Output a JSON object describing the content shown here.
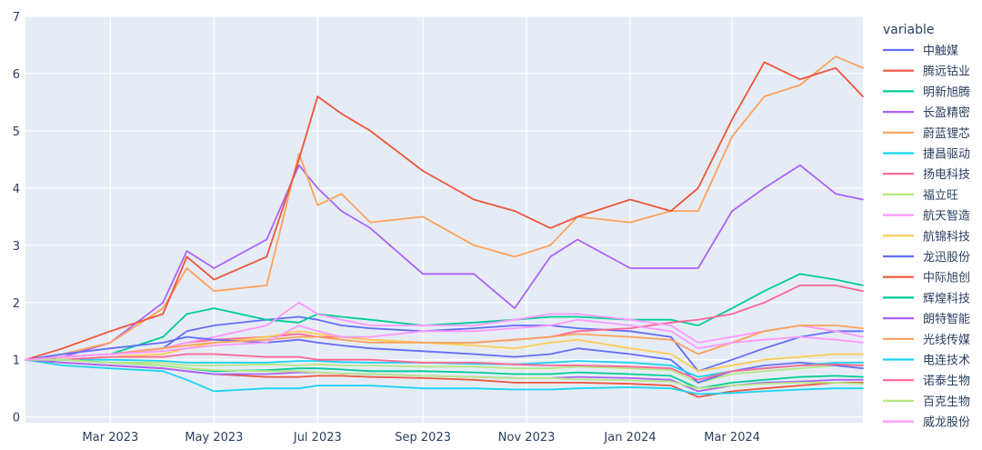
{
  "chart_data": {
    "type": "line",
    "title": "",
    "xlabel": "",
    "ylabel": "",
    "x_range": [
      "2023-01-10",
      "2024-05-17"
    ],
    "ylim": [
      -0.1,
      7.0
    ],
    "y_ticks": [
      0,
      1,
      2,
      3,
      4,
      5,
      6,
      7
    ],
    "x_ticks": [
      {
        "date": "2023-03-01",
        "label": "Mar 2023"
      },
      {
        "date": "2023-05-01",
        "label": "May 2023"
      },
      {
        "date": "2023-07-01",
        "label": "Jul 2023"
      },
      {
        "date": "2023-09-01",
        "label": "Sep 2023"
      },
      {
        "date": "2023-11-01",
        "label": "Nov 2023"
      },
      {
        "date": "2024-01-01",
        "label": "Jan 2024"
      },
      {
        "date": "2024-03-01",
        "label": "Mar 2024"
      }
    ],
    "grid": true,
    "legend_title": "variable",
    "legend_position": "right",
    "dates": [
      "2023-01-10",
      "2023-02-01",
      "2023-03-01",
      "2023-04-01",
      "2023-04-15",
      "2023-05-01",
      "2023-06-01",
      "2023-06-20",
      "2023-07-01",
      "2023-07-15",
      "2023-08-01",
      "2023-09-01",
      "2023-10-01",
      "2023-10-25",
      "2023-11-15",
      "2023-12-01",
      "2024-01-01",
      "2024-01-25",
      "2024-02-10",
      "2024-03-01",
      "2024-03-20",
      "2024-04-10",
      "2024-05-01",
      "2024-05-17"
    ],
    "series": [
      {
        "name": "中触媒",
        "color": "#636efa",
        "values": [
          1.0,
          1.05,
          1.1,
          1.2,
          1.5,
          1.6,
          1.7,
          1.75,
          1.7,
          1.6,
          1.55,
          1.5,
          1.55,
          1.6,
          1.6,
          1.55,
          1.5,
          1.4,
          0.8,
          1.0,
          1.2,
          1.4,
          1.5,
          1.5
        ]
      },
      {
        "name": "腾远钴业",
        "color": "#EF553B",
        "values": [
          1.0,
          0.95,
          0.9,
          0.85,
          0.8,
          0.75,
          0.7,
          0.7,
          0.72,
          0.72,
          0.7,
          0.68,
          0.65,
          0.6,
          0.6,
          0.6,
          0.58,
          0.55,
          0.35,
          0.45,
          0.5,
          0.55,
          0.6,
          0.6
        ]
      },
      {
        "name": "明新旭腾",
        "color": "#00cc96",
        "values": [
          1.0,
          1.05,
          1.1,
          1.4,
          1.8,
          1.9,
          1.7,
          1.65,
          1.8,
          1.75,
          1.7,
          1.6,
          1.65,
          1.7,
          1.75,
          1.75,
          1.7,
          1.7,
          1.6,
          1.9,
          2.2,
          2.5,
          2.4,
          2.3
        ]
      },
      {
        "name": "长盈精密",
        "color": "#ab63fa",
        "values": [
          1.0,
          1.05,
          1.3,
          2.0,
          2.9,
          2.6,
          3.1,
          4.4,
          4.0,
          3.6,
          3.3,
          2.5,
          2.5,
          1.9,
          2.8,
          3.1,
          2.6,
          2.6,
          2.6,
          3.6,
          4.0,
          4.4,
          3.9,
          3.8
        ]
      },
      {
        "name": "蔚蓝锂芯",
        "color": "#FFA15A",
        "values": [
          1.0,
          1.1,
          1.3,
          1.9,
          2.6,
          2.2,
          2.3,
          4.6,
          3.7,
          3.9,
          3.4,
          3.5,
          3.0,
          2.8,
          3.0,
          3.5,
          3.4,
          3.6,
          3.6,
          4.9,
          5.6,
          5.8,
          6.3,
          6.1
        ]
      },
      {
        "name": "捷昌驱动",
        "color": "#19d3f3",
        "values": [
          1.0,
          0.9,
          0.85,
          0.8,
          0.65,
          0.45,
          0.5,
          0.5,
          0.55,
          0.55,
          0.55,
          0.5,
          0.5,
          0.48,
          0.48,
          0.5,
          0.52,
          0.5,
          0.4,
          0.42,
          0.45,
          0.48,
          0.5,
          0.5
        ]
      },
      {
        "name": "扬电科技",
        "color": "#FF6692",
        "values": [
          1.0,
          1.05,
          1.1,
          1.2,
          1.3,
          1.35,
          1.4,
          1.45,
          1.4,
          1.4,
          1.35,
          1.3,
          1.3,
          1.35,
          1.4,
          1.5,
          1.55,
          1.65,
          1.7,
          1.8,
          2.0,
          2.3,
          2.3,
          2.2
        ]
      },
      {
        "name": "福立旺",
        "color": "#B6E880",
        "values": [
          1.0,
          1.0,
          0.95,
          0.95,
          0.9,
          0.9,
          0.92,
          0.9,
          0.92,
          0.9,
          0.9,
          0.88,
          0.88,
          0.85,
          0.85,
          0.88,
          0.85,
          0.82,
          0.6,
          0.75,
          0.8,
          0.85,
          0.9,
          0.9
        ]
      },
      {
        "name": "航天智造",
        "color": "#FF97FF",
        "values": [
          1.0,
          1.05,
          1.1,
          1.2,
          1.3,
          1.4,
          1.6,
          2.0,
          1.8,
          1.7,
          1.6,
          1.6,
          1.6,
          1.7,
          1.8,
          1.8,
          1.7,
          1.6,
          1.3,
          1.4,
          1.5,
          1.6,
          1.5,
          1.4
        ]
      },
      {
        "name": "航锦科技",
        "color": "#FECB52",
        "values": [
          1.0,
          1.0,
          1.05,
          1.1,
          1.2,
          1.3,
          1.4,
          1.5,
          1.45,
          1.4,
          1.35,
          1.3,
          1.25,
          1.2,
          1.3,
          1.35,
          1.2,
          1.1,
          0.8,
          0.9,
          1.0,
          1.05,
          1.1,
          1.1
        ]
      },
      {
        "name": "龙迅股份",
        "color": "#636efa",
        "values": [
          1.0,
          1.1,
          1.2,
          1.3,
          1.4,
          1.35,
          1.3,
          1.35,
          1.3,
          1.25,
          1.2,
          1.15,
          1.1,
          1.05,
          1.1,
          1.2,
          1.1,
          1.0,
          0.6,
          0.8,
          0.9,
          0.95,
          0.9,
          0.85
        ]
      },
      {
        "name": "中际旭创",
        "color": "#EF553B",
        "values": [
          1.0,
          1.2,
          1.5,
          1.8,
          2.8,
          2.4,
          2.8,
          4.5,
          5.6,
          5.3,
          5.0,
          4.3,
          3.8,
          3.6,
          3.3,
          3.5,
          3.8,
          3.6,
          4.0,
          5.2,
          6.2,
          5.9,
          6.1,
          5.6
        ]
      },
      {
        "name": "辉煌科技",
        "color": "#00cc96",
        "values": [
          1.0,
          1.0,
          0.95,
          0.9,
          0.85,
          0.8,
          0.82,
          0.85,
          0.85,
          0.83,
          0.8,
          0.8,
          0.78,
          0.75,
          0.75,
          0.78,
          0.75,
          0.72,
          0.5,
          0.6,
          0.65,
          0.7,
          0.72,
          0.7
        ]
      },
      {
        "name": "朗特智能",
        "color": "#ab63fa",
        "values": [
          1.0,
          0.95,
          0.9,
          0.85,
          0.8,
          0.75,
          0.75,
          0.78,
          0.78,
          0.76,
          0.75,
          0.72,
          0.7,
          0.68,
          0.68,
          0.7,
          0.68,
          0.65,
          0.45,
          0.55,
          0.6,
          0.62,
          0.65,
          0.65
        ]
      },
      {
        "name": "光线传媒",
        "color": "#FFA15A",
        "values": [
          1.0,
          1.05,
          1.1,
          1.2,
          1.25,
          1.3,
          1.35,
          1.4,
          1.4,
          1.35,
          1.3,
          1.3,
          1.3,
          1.35,
          1.4,
          1.45,
          1.4,
          1.35,
          1.1,
          1.3,
          1.5,
          1.6,
          1.6,
          1.55
        ]
      },
      {
        "name": "电连技术",
        "color": "#19d3f3",
        "values": [
          1.0,
          1.0,
          1.0,
          0.98,
          0.95,
          0.95,
          0.95,
          0.98,
          0.98,
          0.96,
          0.95,
          0.95,
          0.93,
          0.92,
          0.95,
          0.98,
          0.95,
          0.9,
          0.7,
          0.8,
          0.85,
          0.9,
          0.95,
          0.95
        ]
      },
      {
        "name": "诺泰生物",
        "color": "#FF6692",
        "values": [
          1.0,
          1.0,
          1.05,
          1.05,
          1.1,
          1.1,
          1.05,
          1.05,
          1.0,
          1.0,
          1.0,
          0.95,
          0.95,
          0.92,
          0.9,
          0.9,
          0.88,
          0.85,
          0.65,
          0.8,
          0.85,
          0.9,
          0.92,
          0.9
        ]
      },
      {
        "name": "百克生物",
        "color": "#B6E880",
        "values": [
          1.0,
          1.0,
          0.95,
          0.9,
          0.85,
          0.82,
          0.8,
          0.8,
          0.78,
          0.76,
          0.75,
          0.72,
          0.7,
          0.68,
          0.68,
          0.66,
          0.64,
          0.62,
          0.5,
          0.55,
          0.58,
          0.6,
          0.6,
          0.58
        ]
      },
      {
        "name": "威龙股份",
        "color": "#FF97FF",
        "values": [
          1.0,
          1.05,
          1.1,
          1.15,
          1.2,
          1.25,
          1.3,
          1.6,
          1.5,
          1.4,
          1.4,
          1.5,
          1.5,
          1.55,
          1.6,
          1.7,
          1.6,
          1.5,
          1.2,
          1.3,
          1.35,
          1.4,
          1.35,
          1.3
        ]
      }
    ]
  }
}
